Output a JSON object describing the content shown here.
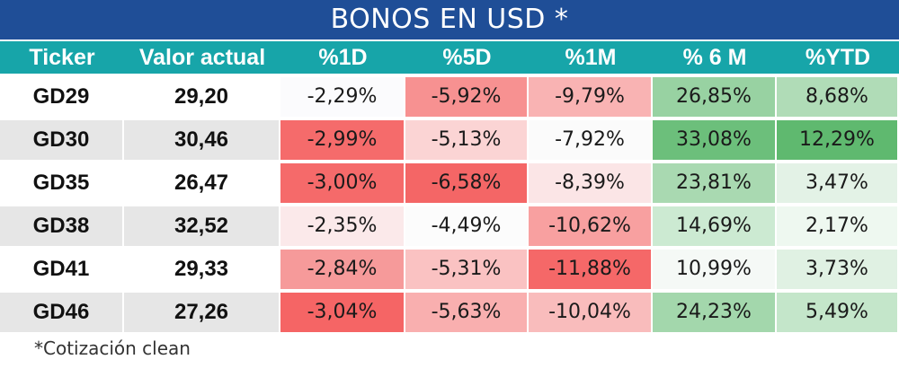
{
  "title": "BONOS EN USD *",
  "headers": [
    "Ticker",
    "Valor actual",
    "%1D",
    "%5D",
    "%1M",
    "% 6 M",
    "%YTD"
  ],
  "rows": [
    {
      "ticker": "GD29",
      "valor": "29,20",
      "d1": "-2,29%",
      "d5": "-5,92%",
      "m1": "-9,79%",
      "m6": "26,85%",
      "ytd": "8,68%"
    },
    {
      "ticker": "GD30",
      "valor": "30,46",
      "d1": "-2,99%",
      "d5": "-5,13%",
      "m1": "-7,92%",
      "m6": "33,08%",
      "ytd": "12,29%"
    },
    {
      "ticker": "GD35",
      "valor": "26,47",
      "d1": "-3,00%",
      "d5": "-6,58%",
      "m1": "-8,39%",
      "m6": "23,81%",
      "ytd": "3,47%"
    },
    {
      "ticker": "GD38",
      "valor": "32,52",
      "d1": "-2,35%",
      "d5": "-4,49%",
      "m1": "-10,62%",
      "m6": "14,69%",
      "ytd": "2,17%"
    },
    {
      "ticker": "GD41",
      "valor": "29,33",
      "d1": "-2,84%",
      "d5": "-5,31%",
      "m1": "-11,88%",
      "m6": "10,99%",
      "ytd": "3,73%"
    },
    {
      "ticker": "GD46",
      "valor": "27,26",
      "d1": "-3,04%",
      "d5": "-5,63%",
      "m1": "-10,04%",
      "m6": "24,23%",
      "ytd": "5,49%"
    }
  ],
  "cell_colors": [
    [
      "#ffffff",
      "#ffffff",
      "#fbfbfd",
      "#f79191",
      "#f9b3b3",
      "#98d2a2",
      "#b0dcb7"
    ],
    [
      "#e6e6e6",
      "#e6e6e6",
      "#f56b6b",
      "#fbd4d4",
      "#fbfbfb",
      "#6cbf7b",
      "#5fb96f"
    ],
    [
      "#ffffff",
      "#ffffff",
      "#f56a6a",
      "#f46666",
      "#fbe5e6",
      "#a9d9b1",
      "#e3f2e6"
    ],
    [
      "#e6e6e6",
      "#e6e6e6",
      "#fbe9ea",
      "#fcfcfc",
      "#f8a0a0",
      "#ccead2",
      "#eef8f0"
    ],
    [
      "#ffffff",
      "#ffffff",
      "#f69a9a",
      "#fac2c2",
      "#f56868",
      "#f5f9f6",
      "#e0f1e3"
    ],
    [
      "#e6e6e6",
      "#e6e6e6",
      "#f56565",
      "#f9afaf",
      "#f9bcbc",
      "#a3d7ac",
      "#c4e6ca"
    ]
  ],
  "footnote": "*Cotización clean"
}
